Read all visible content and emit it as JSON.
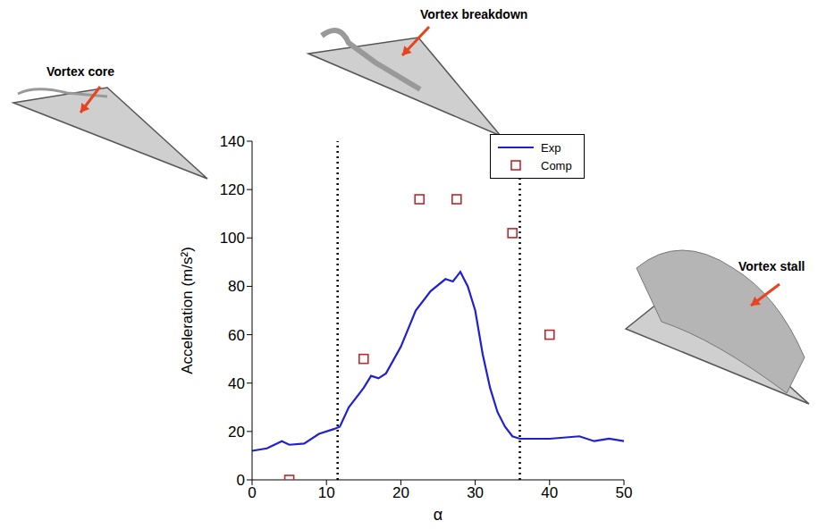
{
  "chart_data": {
    "type": "line",
    "x_label": "α",
    "y_label": "Acceleration (m/s²)",
    "xlim": [
      0,
      50
    ],
    "xticks": [
      0,
      10,
      20,
      30,
      40,
      50
    ],
    "ylim": [
      0,
      140
    ],
    "yticks": [
      0,
      20,
      40,
      60,
      80,
      100,
      120,
      140
    ],
    "grid": false,
    "legend": "upper right",
    "vlines": [
      11.5,
      36
    ],
    "annotations": [
      "Vortex core",
      "Vortex breakdown",
      "Vortex stall"
    ],
    "series": [
      {
        "name": "Exp",
        "type": "line",
        "color": "#1f1fd6",
        "line_style": "solid",
        "x": [
          0,
          2,
          4,
          5,
          7,
          9,
          11,
          11.8,
          13,
          15,
          16,
          17,
          18,
          20,
          22,
          24,
          26,
          27,
          28,
          29,
          30,
          31,
          32,
          33,
          34,
          35,
          36,
          40,
          44,
          46,
          48,
          50
        ],
        "values": [
          12,
          13,
          16,
          14.5,
          15,
          19,
          21,
          22,
          30,
          38,
          43,
          42,
          44,
          55,
          70,
          78,
          83,
          82,
          86,
          80,
          70,
          52,
          38,
          28,
          22,
          18,
          17,
          17,
          18,
          16,
          17,
          16
        ]
      },
      {
        "name": "Comp",
        "type": "scatter",
        "color": "#c0282d",
        "marker": "square",
        "x": [
          5,
          15,
          22.5,
          27.5,
          35,
          40
        ],
        "values": [
          0,
          50,
          116,
          116,
          102,
          60
        ]
      }
    ]
  }
}
